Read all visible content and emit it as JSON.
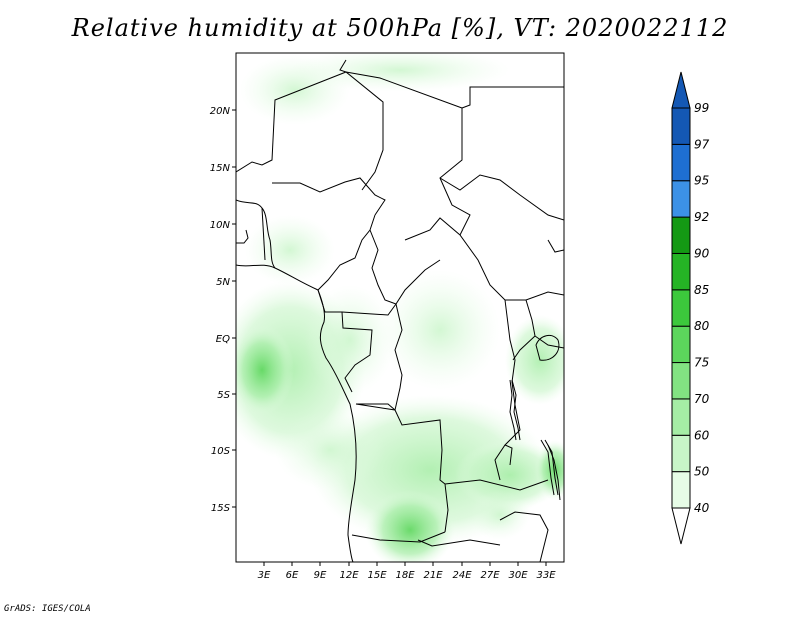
{
  "title": "Relative humidity at 500hPa [%], VT: 2020022112",
  "credit": "GrADS: IGES/COLA",
  "map": {
    "lat_labels": [
      "20N",
      "15N",
      "10N",
      "5N",
      "EQ",
      "5S",
      "10S",
      "15S"
    ],
    "lon_labels": [
      "3E",
      "6E",
      "9E",
      "12E",
      "15E",
      "18E",
      "21E",
      "24E",
      "27E",
      "30E",
      "33E"
    ]
  },
  "colorbar": {
    "levels": [
      "40",
      "50",
      "60",
      "70",
      "75",
      "80",
      "85",
      "90",
      "92",
      "95",
      "97",
      "99"
    ],
    "colors": [
      "#ffffff",
      "#e6fce6",
      "#c8f5c8",
      "#a5eda5",
      "#82e382",
      "#5cd65c",
      "#3cc83c",
      "#25b425",
      "#149914",
      "#3c91e6",
      "#1e6fd2",
      "#1458b4"
    ]
  }
}
